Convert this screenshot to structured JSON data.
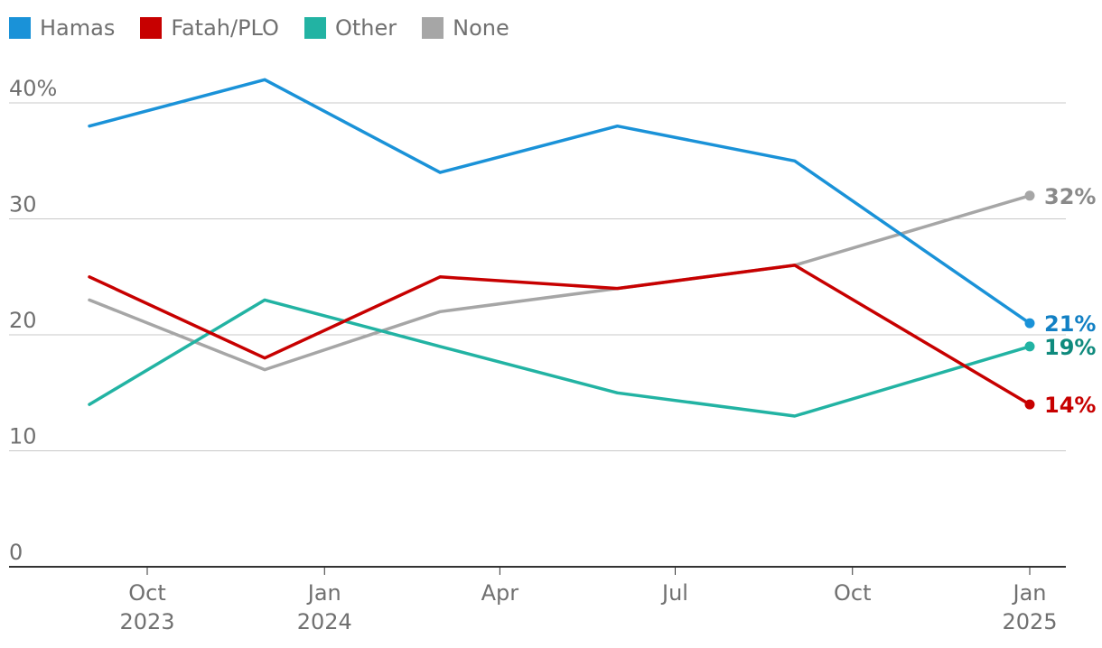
{
  "chart_data": {
    "type": "line",
    "title": "",
    "xlabel": "",
    "ylabel": "",
    "legend_position": "top-left",
    "grid": true,
    "ylim": [
      0,
      42
    ],
    "x": [
      "2023-09",
      "2023-12",
      "2024-03",
      "2024-06",
      "2024-09",
      "2025-01"
    ],
    "x_ticks": [
      {
        "date": "2023-10",
        "line1": "Oct",
        "line2": "2023"
      },
      {
        "date": "2024-01",
        "line1": "Jan",
        "line2": "2024"
      },
      {
        "date": "2024-04",
        "line1": "Apr",
        "line2": ""
      },
      {
        "date": "2024-07",
        "line1": "Jul",
        "line2": ""
      },
      {
        "date": "2024-10",
        "line1": "Oct",
        "line2": ""
      },
      {
        "date": "2025-01",
        "line1": "Jan",
        "line2": "2025"
      }
    ],
    "y_ticks": [
      {
        "value": 0,
        "label": "0"
      },
      {
        "value": 10,
        "label": "10"
      },
      {
        "value": 20,
        "label": "20"
      },
      {
        "value": 30,
        "label": "30"
      },
      {
        "value": 40,
        "label": "40%"
      }
    ],
    "series": [
      {
        "name": "Hamas",
        "color": "#1a92d8",
        "label_color": "#1280c4",
        "values": [
          38,
          42,
          34,
          38,
          35,
          21
        ],
        "end_label": "21%"
      },
      {
        "name": "Fatah/PLO",
        "color": "#c70000",
        "label_color": "#c70000",
        "values": [
          25,
          18,
          25,
          24,
          26,
          14
        ],
        "end_label": "14%"
      },
      {
        "name": "Other",
        "color": "#22b3a3",
        "label_color": "#0f8a7d",
        "values": [
          14,
          23,
          19,
          15,
          13,
          19
        ],
        "end_label": "19%"
      },
      {
        "name": "None",
        "color": "#a6a6a6",
        "label_color": "#8a8a8a",
        "values": [
          23,
          17,
          22,
          24,
          26,
          32
        ],
        "end_label": "32%"
      }
    ]
  }
}
